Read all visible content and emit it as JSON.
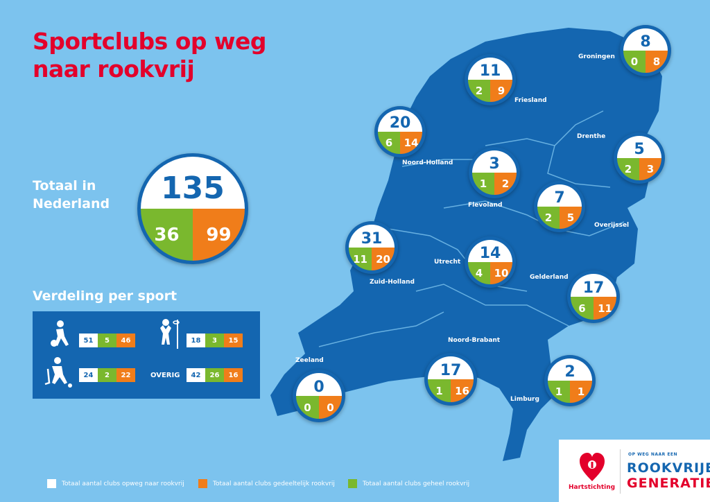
{
  "title": "Sportclubs op weg naar rookvrij",
  "total": {
    "label": "Totaal in Nederland",
    "total": "135",
    "green": "36",
    "orange": "99"
  },
  "sport_section": {
    "title": "Verdeling per sport",
    "rows": [
      {
        "icon": "football-player-icon",
        "white": "51",
        "green": "5",
        "orange": "46"
      },
      {
        "icon": "korfball-player-icon",
        "white": "18",
        "green": "3",
        "orange": "15"
      },
      {
        "icon": "hockey-player-icon",
        "white": "24",
        "green": "2",
        "orange": "22"
      },
      {
        "label": "OVERIG",
        "white": "42",
        "green": "26",
        "orange": "16"
      }
    ]
  },
  "provinces": [
    {
      "name": "Groningen",
      "total": "8",
      "green": "0",
      "orange": "8"
    },
    {
      "name": "Friesland",
      "total": "11",
      "green": "2",
      "orange": "9"
    },
    {
      "name": "Noord-Holland",
      "total": "20",
      "green": "6",
      "orange": "14"
    },
    {
      "name": "Drenthe",
      "total": "5",
      "green": "2",
      "orange": "3"
    },
    {
      "name": "Flevoland",
      "total": "3",
      "green": "1",
      "orange": "2"
    },
    {
      "name": "Overijssel",
      "total": "7",
      "green": "2",
      "orange": "5"
    },
    {
      "name": "Zuid-Holland",
      "total": "31",
      "green": "11",
      "orange": "20"
    },
    {
      "name": "Utrecht",
      "total": "14",
      "green": "4",
      "orange": "10"
    },
    {
      "name": "Gelderland",
      "total": "17",
      "green": "6",
      "orange": "11"
    },
    {
      "name": "Noord-Brabant",
      "total": "17",
      "green": "1",
      "orange": "16"
    },
    {
      "name": "Zeeland",
      "total": "0",
      "green": "0",
      "orange": "0"
    },
    {
      "name": "Limburg",
      "total": "2",
      "green": "1",
      "orange": "1"
    }
  ],
  "legend": {
    "white": "Totaal aantal clubs opweg naar rookvrij",
    "orange": "Totaal aantal clubs gedeeltelijk rookvrij",
    "green": "Totaal aantal clubs geheel rookvrij"
  },
  "logos": {
    "hartstichting": "Hartstichting",
    "campaign_top": "OP WEG NAAR EEN",
    "campaign_line1": "ROOKVRIJE",
    "campaign_line2": "GENERATIE"
  },
  "colors": {
    "background": "#7cc3ee",
    "map": "#1466b0",
    "title": "#e3002b",
    "green": "#7ab82e",
    "orange": "#f07d1a"
  }
}
